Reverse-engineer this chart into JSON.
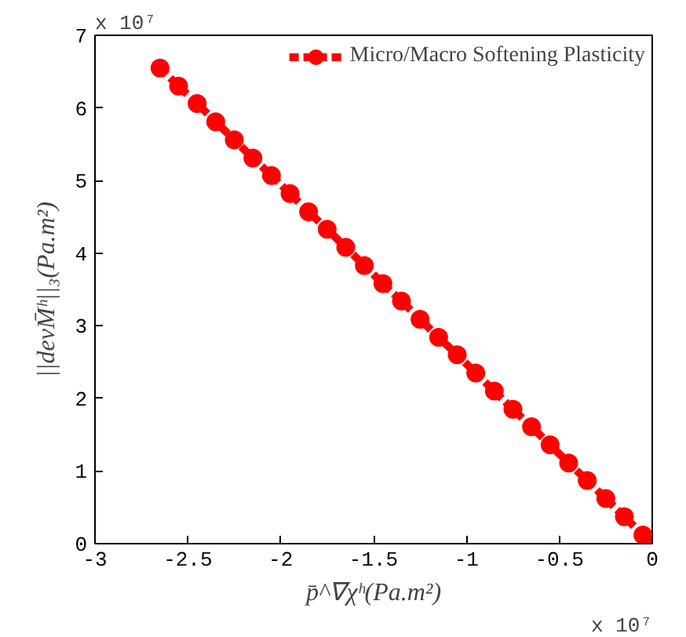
{
  "chart_data": {
    "type": "line",
    "xlabel": "p̄^∇χʰ(Pa.m²)",
    "ylabel": "||devM̄ʰ||₃(Pa.m²)",
    "x": [
      -2.65,
      -2.55,
      -2.45,
      -2.35,
      -2.25,
      -2.15,
      -2.05,
      -1.95,
      -1.85,
      -1.75,
      -1.65,
      -1.55,
      -1.45,
      -1.35,
      -1.25,
      -1.15,
      -1.05,
      -0.95,
      -0.85,
      -0.75,
      -0.65,
      -0.55,
      -0.45,
      -0.35,
      -0.25,
      -0.15,
      -0.05,
      0
    ],
    "series": [
      {
        "name": "Micro/Macro Softening Plasticity",
        "color": "#ff0000",
        "values": [
          6.55,
          6.3,
          6.06,
          5.81,
          5.56,
          5.31,
          5.07,
          4.82,
          4.57,
          4.33,
          4.08,
          3.83,
          3.58,
          3.34,
          3.09,
          2.84,
          2.6,
          2.35,
          2.1,
          1.85,
          1.61,
          1.36,
          1.11,
          0.87,
          0.62,
          0.37,
          0.12,
          0
        ]
      }
    ],
    "xlim": [
      -3,
      0
    ],
    "ylim": [
      0,
      7
    ],
    "xticks": [
      -3,
      -2.5,
      -2,
      -1.5,
      -1,
      -0.5,
      0
    ],
    "yticks": [
      0,
      1,
      2,
      3,
      4,
      5,
      6,
      7
    ],
    "grid": false,
    "legend": "top right",
    "marker": "circle",
    "line_style": "dashed",
    "annotations": [
      "x 10⁷",
      "x 10⁷"
    ]
  }
}
